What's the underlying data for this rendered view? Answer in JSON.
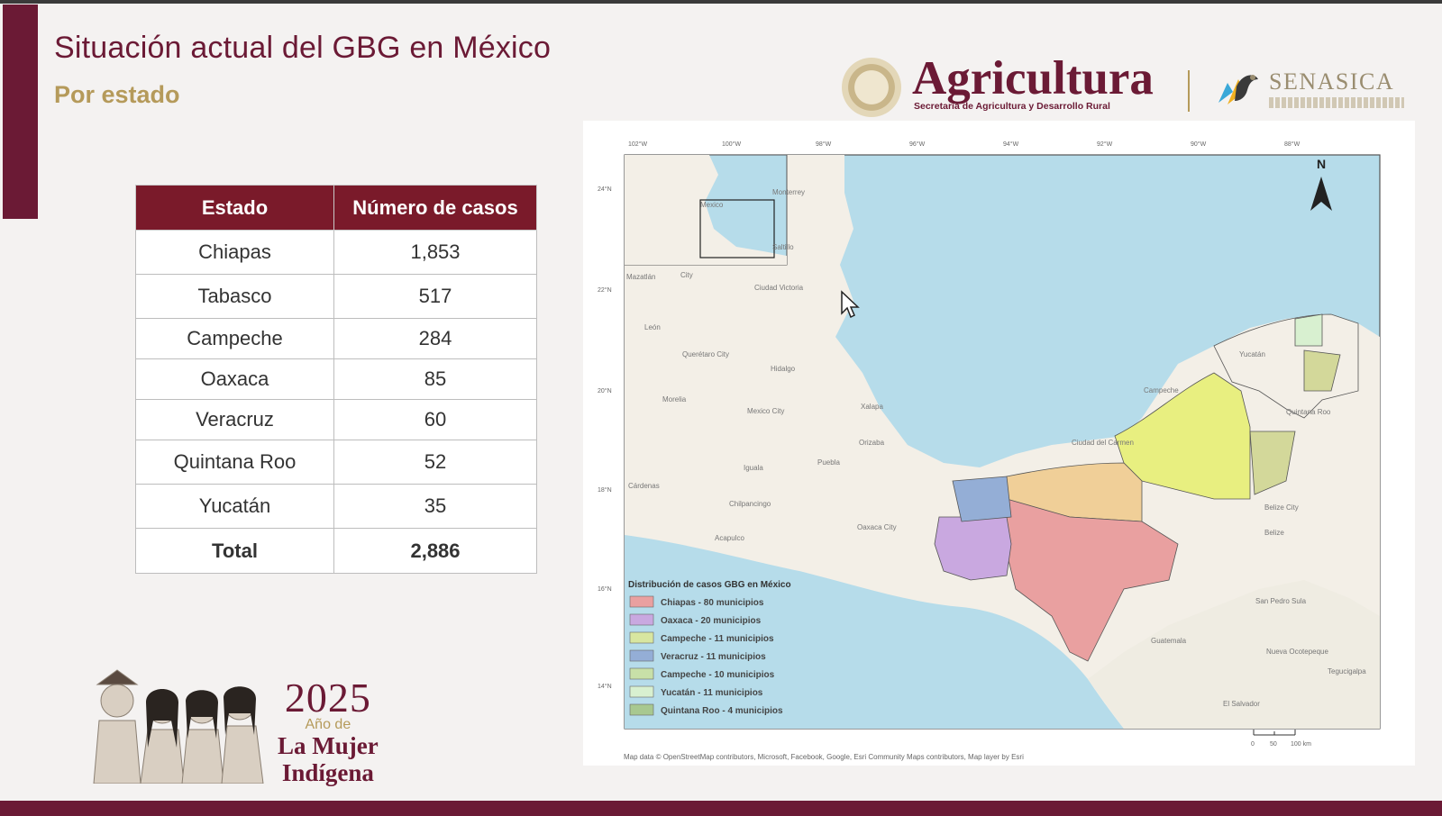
{
  "slide": {
    "title": "Situación actual del GBG en México",
    "subtitle": "Por estado"
  },
  "table": {
    "headers": [
      "Estado",
      "Número de casos"
    ],
    "rows": [
      [
        "Chiapas",
        "1,853"
      ],
      [
        "Tabasco",
        "517"
      ],
      [
        "Campeche",
        "284"
      ],
      [
        "Oaxaca",
        "85"
      ],
      [
        "Veracruz",
        "60"
      ],
      [
        "Quintana Roo",
        "52"
      ],
      [
        "Yucatán",
        "35"
      ]
    ],
    "total_label": "Total",
    "total_value": "2,886"
  },
  "logos": {
    "agricultura": "Agricultura",
    "agricultura_sub": "Secretaría de Agricultura y Desarrollo Rural",
    "senasica": "SENASICA"
  },
  "map": {
    "north_label": "N",
    "legend_title": "Distribución de casos GBG en México",
    "legend": [
      {
        "label": "Chiapas - 80 municipios",
        "color": "#e9a0a0"
      },
      {
        "label": "Oaxaca - 20 municipios",
        "color": "#c9a8e0"
      },
      {
        "label": "Campeche - 11 municipios",
        "color": "#d8e6a0"
      },
      {
        "label": "Veracruz - 11 municipios",
        "color": "#94aed6"
      },
      {
        "label": "Campeche - 10 municipios",
        "color": "#c8e0a8"
      },
      {
        "label": "Yucatán - 11 municipios",
        "color": "#d8f0d0"
      },
      {
        "label": "Quintana Roo - 4 municipios",
        "color": "#a8c890"
      }
    ],
    "credits": "Map data © OpenStreetMap contributors, Microsoft, Facebook, Google, Esri Community Maps contributors, Map layer by Esri",
    "places": [
      "Ciudad Victoria",
      "León",
      "Querétaro City",
      "Hidalgo",
      "Morelia",
      "Mexico City",
      "Xalapa",
      "Puebla",
      "Orizaba",
      "Iguala",
      "Cárdenas",
      "Chilpancingo",
      "Oaxaca City",
      "Acapulco",
      "Campeche",
      "Belize City",
      "Belize",
      "San Pedro Sula",
      "Guatemala",
      "Tegucigalpa",
      "El Salvador",
      "Nueva Ocotepeque",
      "Quintana Roo",
      "Yucatán",
      "Ciudad del Carmen",
      "Mexico",
      "Monterrey",
      "Saltillo",
      "Mazatlán",
      "City"
    ],
    "lat_ticks": [
      "24°N",
      "22°N",
      "20°N",
      "18°N",
      "16°N",
      "14°N"
    ],
    "lon_ticks": [
      "102°W",
      "100°W",
      "98°W",
      "96°W",
      "94°W",
      "92°W",
      "90°W",
      "88°W"
    ],
    "scale_labels": [
      "0",
      "50",
      "100 km"
    ]
  },
  "brand_year": {
    "year": "2025",
    "line1": "Año de",
    "line2": "La Mujer",
    "line3": "Indígena"
  }
}
